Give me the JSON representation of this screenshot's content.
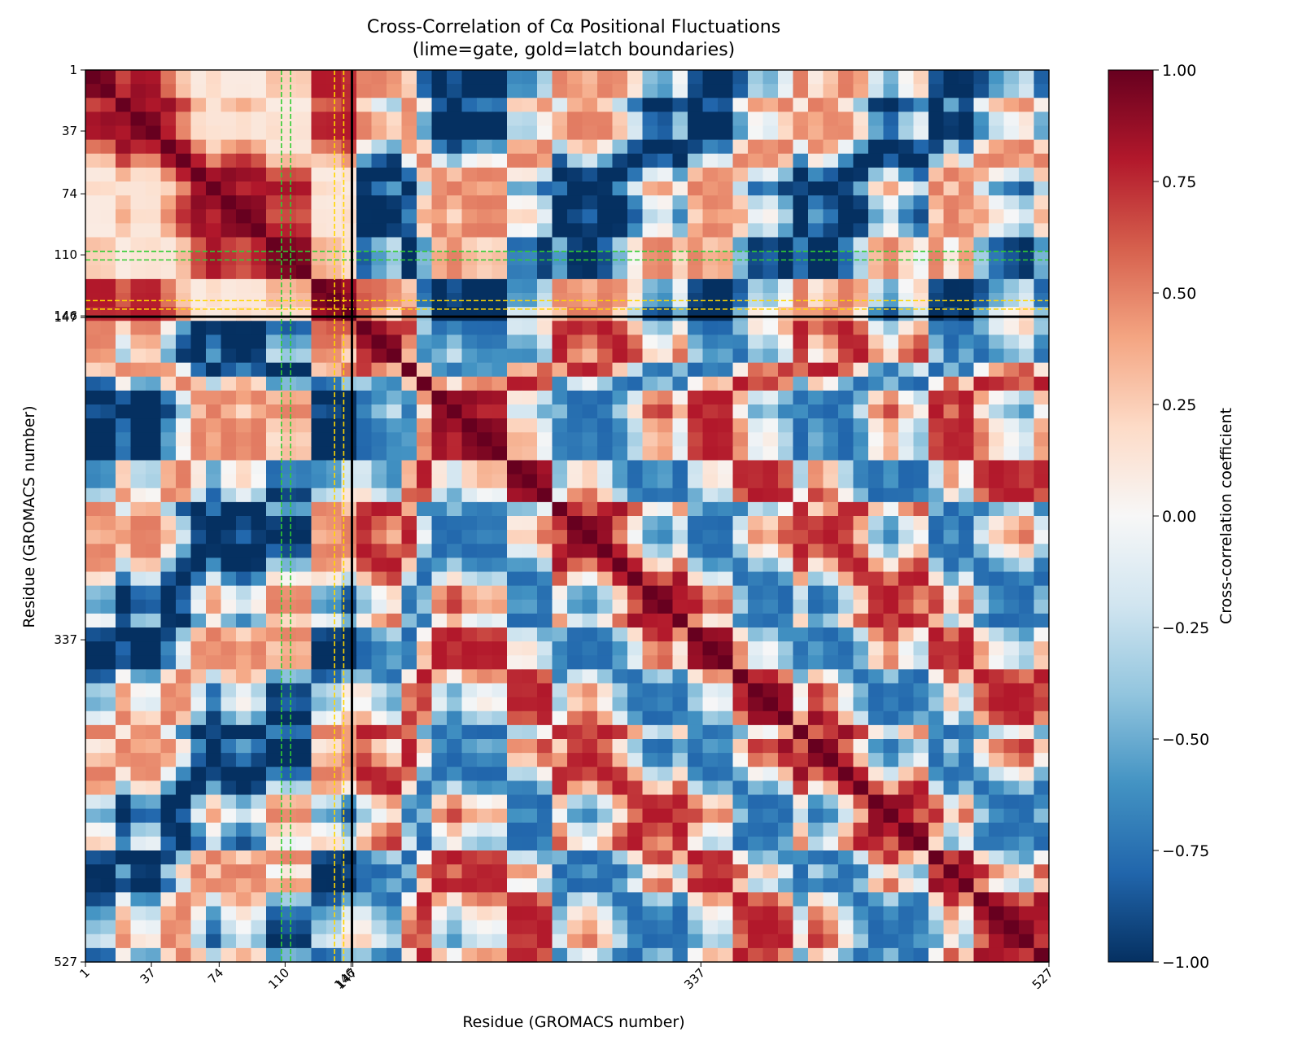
{
  "chart_data": {
    "type": "heatmap",
    "title": "Cross-Correlation of Cα Positional Fluctuations",
    "subtitle": "(lime=gate, gold=latch boundaries)",
    "xlabel": "Residue (GROMACS number)",
    "ylabel": "Residue (GROMACS number)",
    "xlim": [
      1,
      527
    ],
    "ylim": [
      527,
      1
    ],
    "x_ticks": [
      {
        "value": 1,
        "label": "1"
      },
      {
        "value": 37,
        "label": "37"
      },
      {
        "value": 74,
        "label": "74"
      },
      {
        "value": 110,
        "label": "110"
      },
      {
        "value": 146,
        "label": "146"
      },
      {
        "value": 147,
        "label": "147"
      },
      {
        "value": 337,
        "label": "337"
      },
      {
        "value": 527,
        "label": "527"
      }
    ],
    "y_ticks": [
      {
        "value": 1,
        "label": "1"
      },
      {
        "value": 37,
        "label": "37"
      },
      {
        "value": 74,
        "label": "74"
      },
      {
        "value": 110,
        "label": "110"
      },
      {
        "value": 146,
        "label": "146"
      },
      {
        "value": 147,
        "label": "147"
      },
      {
        "value": 337,
        "label": "337"
      },
      {
        "value": 527,
        "label": "527"
      }
    ],
    "chain_boundary": 146.5,
    "gate_boundaries": [
      108,
      113
    ],
    "latch_boundaries": [
      137,
      142
    ],
    "colorbar": {
      "label": "Cross-correlation coefficient",
      "range": [
        -1.0,
        1.0
      ],
      "ticks": [
        {
          "value": 1.0,
          "label": "1.00"
        },
        {
          "value": 0.75,
          "label": "0.75"
        },
        {
          "value": 0.5,
          "label": "0.50"
        },
        {
          "value": 0.25,
          "label": "0.25"
        },
        {
          "value": 0.0,
          "label": "0.00"
        },
        {
          "value": -0.25,
          "label": "−0.25"
        },
        {
          "value": -0.5,
          "label": "−0.50"
        },
        {
          "value": -0.75,
          "label": "−0.75"
        },
        {
          "value": -1.0,
          "label": "−1.00"
        }
      ],
      "colormap": "RdBu_r"
    },
    "colors": {
      "gate": "#32cd32",
      "latch": "#ffd700",
      "frame": "#000000",
      "diverging_low": "#053061",
      "diverging_mid": "#f7f7f7",
      "diverging_high": "#67001f"
    }
  }
}
